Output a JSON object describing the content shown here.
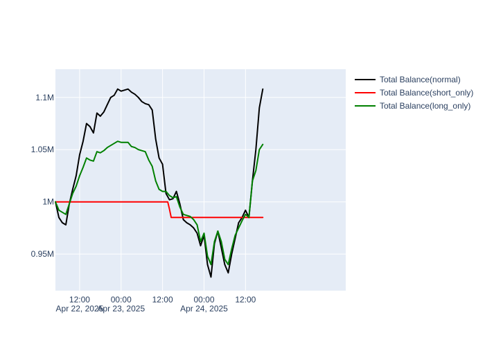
{
  "chart_data": {
    "type": "line",
    "title": "",
    "xlabel": "",
    "ylabel": "",
    "xlim": [
      "2025-04-21T05:00",
      "2025-04-24T17:00"
    ],
    "ylim": [
      915000,
      1127000
    ],
    "grid": true,
    "legend": "top-right",
    "y_ticks": [
      {
        "value": 950000,
        "label": "0.95M"
      },
      {
        "value": 1000000,
        "label": "1M"
      },
      {
        "value": 1050000,
        "label": "1.05M"
      },
      {
        "value": 1100000,
        "label": "1.1M"
      }
    ],
    "x_ticks": [
      {
        "value": "2025-04-21T12:00",
        "label": "12:00",
        "sublabel": "Apr 22, 2025"
      },
      {
        "value": "2025-04-22T00:00",
        "label": "00:00",
        "sublabel": "Apr 23, 2025"
      },
      {
        "value": "2025-04-22T12:00",
        "label": "12:00",
        "sublabel": ""
      },
      {
        "value": "2025-04-23T00:00",
        "label": "00:00",
        "sublabel": "Apr 24, 2025"
      },
      {
        "value": "2025-04-23T12:00",
        "label": "12:00",
        "sublabel": ""
      }
    ],
    "series": [
      {
        "name": "Total Balance(normal)",
        "color": "#000000",
        "x": [
          "2025-04-21T05:00",
          "2025-04-21T06:00",
          "2025-04-21T07:00",
          "2025-04-21T08:00",
          "2025-04-21T09:00",
          "2025-04-21T10:00",
          "2025-04-21T11:00",
          "2025-04-21T12:00",
          "2025-04-21T13:00",
          "2025-04-21T14:00",
          "2025-04-21T15:00",
          "2025-04-21T16:00",
          "2025-04-21T17:00",
          "2025-04-21T18:00",
          "2025-04-21T19:00",
          "2025-04-21T20:00",
          "2025-04-21T21:00",
          "2025-04-21T22:00",
          "2025-04-21T23:00",
          "2025-04-22T00:00",
          "2025-04-22T01:00",
          "2025-04-22T02:00",
          "2025-04-22T03:00",
          "2025-04-22T04:00",
          "2025-04-22T05:00",
          "2025-04-22T06:00",
          "2025-04-22T07:00",
          "2025-04-22T08:00",
          "2025-04-22T09:00",
          "2025-04-22T10:00",
          "2025-04-22T11:00",
          "2025-04-22T12:00",
          "2025-04-22T13:00",
          "2025-04-22T14:00",
          "2025-04-22T15:00",
          "2025-04-22T16:00",
          "2025-04-22T17:00",
          "2025-04-22T18:00",
          "2025-04-22T19:00",
          "2025-04-22T20:00",
          "2025-04-22T21:00",
          "2025-04-22T22:00",
          "2025-04-22T23:00",
          "2025-04-23T00:00",
          "2025-04-23T01:00",
          "2025-04-23T02:00",
          "2025-04-23T03:00",
          "2025-04-23T04:00",
          "2025-04-23T05:00",
          "2025-04-23T06:00",
          "2025-04-23T07:00",
          "2025-04-23T08:00",
          "2025-04-23T09:00",
          "2025-04-23T10:00",
          "2025-04-23T11:00",
          "2025-04-23T12:00",
          "2025-04-23T13:00",
          "2025-04-23T14:00",
          "2025-04-23T15:00",
          "2025-04-23T16:00",
          "2025-04-23T17:00"
        ],
        "y": [
          1000000,
          985000,
          980000,
          978000,
          998000,
          1012000,
          1025000,
          1045000,
          1058000,
          1075000,
          1072000,
          1066000,
          1085000,
          1082000,
          1086000,
          1093000,
          1100000,
          1102000,
          1108000,
          1106000,
          1107000,
          1108000,
          1105000,
          1103000,
          1100000,
          1096000,
          1094000,
          1093000,
          1088000,
          1060000,
          1042000,
          1036000,
          1008000,
          1002000,
          1003000,
          1010000,
          998000,
          983000,
          980000,
          978000,
          975000,
          970000,
          958000,
          968000,
          940000,
          928000,
          960000,
          972000,
          956000,
          940000,
          932000,
          950000,
          965000,
          980000,
          985000,
          992000,
          985000,
          1020000,
          1050000,
          1090000,
          1108000
        ]
      },
      {
        "name": "Total Balance(short_only)",
        "color": "#ff0000",
        "x": [
          "2025-04-21T05:00",
          "2025-04-22T13:30",
          "2025-04-22T14:00",
          "2025-04-22T14:30",
          "2025-04-23T17:00"
        ],
        "y": [
          1000000,
          1000000,
          993000,
          985000,
          985000
        ]
      },
      {
        "name": "Total Balance(long_only)",
        "color": "#008000",
        "x": [
          "2025-04-21T05:00",
          "2025-04-21T06:00",
          "2025-04-21T07:00",
          "2025-04-21T08:00",
          "2025-04-21T09:00",
          "2025-04-21T10:00",
          "2025-04-21T11:00",
          "2025-04-21T12:00",
          "2025-04-21T13:00",
          "2025-04-21T14:00",
          "2025-04-21T15:00",
          "2025-04-21T16:00",
          "2025-04-21T17:00",
          "2025-04-21T18:00",
          "2025-04-21T19:00",
          "2025-04-21T20:00",
          "2025-04-21T21:00",
          "2025-04-21T22:00",
          "2025-04-21T23:00",
          "2025-04-22T00:00",
          "2025-04-22T01:00",
          "2025-04-22T02:00",
          "2025-04-22T03:00",
          "2025-04-22T04:00",
          "2025-04-22T05:00",
          "2025-04-22T06:00",
          "2025-04-22T07:00",
          "2025-04-22T08:00",
          "2025-04-22T09:00",
          "2025-04-22T10:00",
          "2025-04-22T11:00",
          "2025-04-22T12:00",
          "2025-04-22T13:00",
          "2025-04-22T14:00",
          "2025-04-22T15:00",
          "2025-04-22T16:00",
          "2025-04-22T17:00",
          "2025-04-22T18:00",
          "2025-04-22T19:00",
          "2025-04-22T20:00",
          "2025-04-22T21:00",
          "2025-04-22T22:00",
          "2025-04-22T23:00",
          "2025-04-23T00:00",
          "2025-04-23T01:00",
          "2025-04-23T02:00",
          "2025-04-23T03:00",
          "2025-04-23T04:00",
          "2025-04-23T05:00",
          "2025-04-23T06:00",
          "2025-04-23T07:00",
          "2025-04-23T08:00",
          "2025-04-23T09:00",
          "2025-04-23T10:00",
          "2025-04-23T11:00",
          "2025-04-23T12:00",
          "2025-04-23T13:00",
          "2025-04-23T14:00",
          "2025-04-23T15:00",
          "2025-04-23T16:00",
          "2025-04-23T17:00"
        ],
        "y": [
          1000000,
          992000,
          990000,
          988000,
          998000,
          1008000,
          1015000,
          1025000,
          1033000,
          1042000,
          1040000,
          1039000,
          1048000,
          1047000,
          1049000,
          1052000,
          1054000,
          1056000,
          1058000,
          1057000,
          1057000,
          1057000,
          1053000,
          1052000,
          1050000,
          1049000,
          1048000,
          1040000,
          1034000,
          1020000,
          1012000,
          1010000,
          1010000,
          1006000,
          1004000,
          1005000,
          995000,
          988000,
          987000,
          986000,
          983000,
          978000,
          962000,
          970000,
          948000,
          940000,
          962000,
          972000,
          962000,
          945000,
          940000,
          955000,
          968000,
          975000,
          982000,
          988000,
          985000,
          1020000,
          1030000,
          1050000,
          1055000
        ]
      }
    ]
  }
}
